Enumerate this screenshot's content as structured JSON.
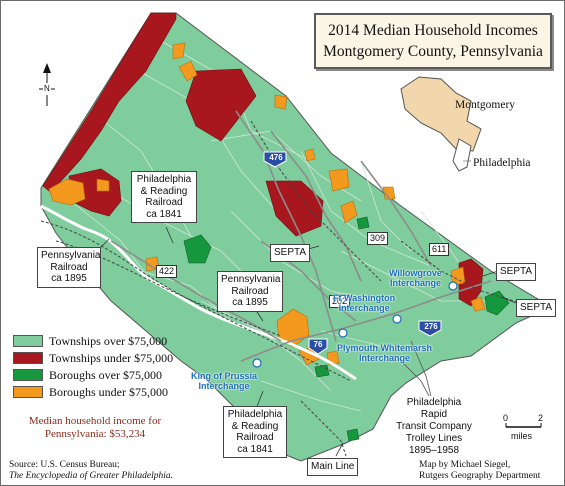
{
  "title": {
    "line1": "2014 Median Household Incomes",
    "line2": "Montgomery County, Pennsylvania"
  },
  "colors": {
    "townships_over": "#7fcc9c",
    "townships_under": "#a8171d",
    "boroughs_over": "#17973d",
    "boroughs_under": "#f39a1e",
    "inset_county": "#f2d6ac",
    "interchange_text": "#1d6fb8",
    "median_text": "#8b2a1a"
  },
  "legend": {
    "items": [
      {
        "label": "Townships over $75,000",
        "color": "#7fcc9c"
      },
      {
        "label": "Townships under $75,000",
        "color": "#a8171d"
      },
      {
        "label": "Boroughs over $75,000",
        "color": "#17973d"
      },
      {
        "label": "Boroughs under $75,000",
        "color": "#f39a1e"
      }
    ]
  },
  "median": {
    "line1": "Median household income for",
    "line2": "Pennsylvania: $53,234"
  },
  "inset": {
    "montgomery": "Montgomery",
    "philadelphia": "Philadelphia"
  },
  "north": "N",
  "highways": {
    "i476": "476",
    "i276": "276",
    "i76": "76",
    "r309": "309",
    "r611": "611",
    "r422": "422",
    "r202": "202"
  },
  "railroads": {
    "phila_reading_1": {
      "line1": "Philadelphia",
      "line2": "& Reading",
      "line3": "Railroad",
      "line4": "ca 1841"
    },
    "penn_1": {
      "line1": "Pennsylvania",
      "line2": "Railroad",
      "line3": "ca 1895"
    },
    "penn_2": {
      "line1": "Pennsylvania",
      "line2": "Railroad",
      "line3": "ca 1895"
    },
    "phila_reading_2": {
      "line1": "Philadelphia",
      "line2": "& Reading",
      "line3": "Railroad",
      "line4": "ca 1841"
    },
    "septa_1": "SEPTA",
    "septa_2": "SEPTA",
    "septa_3": "SEPTA",
    "main_line": "Main Line"
  },
  "interchanges": {
    "willowgrove": {
      "line1": "Willowgrove",
      "line2": "Interchange"
    },
    "ftwashington": {
      "line1": "Ft Washington",
      "line2": "Interchange"
    },
    "plymouth": {
      "line1": "Plymouth Whitemarsh",
      "line2": "Interchange"
    },
    "kingofprussia": {
      "line1": "King of Prussia",
      "line2": "Interchange"
    }
  },
  "trolley": {
    "line1": "Philadelphia Rapid",
    "line2": "Transit Company",
    "line3": "Trolley Lines",
    "line4": "1895–1958"
  },
  "scale": {
    "zero": "0",
    "two": "2",
    "unit": "miles"
  },
  "source": {
    "line1": "Source: U.S. Census Bureau;",
    "line2": "The Encyclopedia of Greater Philadelphia."
  },
  "credit": {
    "line1": "Map by Michael Siegel,",
    "line2": "Rutgers Geography Department"
  }
}
